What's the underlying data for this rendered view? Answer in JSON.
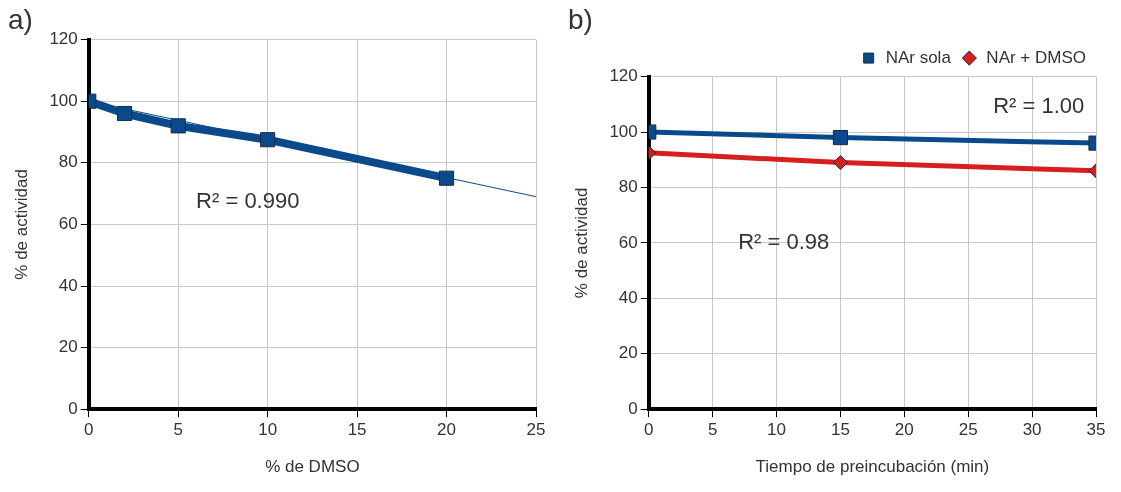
{
  "chart_data": [
    {
      "type": "line",
      "title": "a)",
      "xlabel": "% de DMSO",
      "ylabel": "% de actividad",
      "x": [
        0,
        2,
        5,
        10,
        20
      ],
      "series": [
        {
          "color": "#0b4a8a",
          "values": [
            100,
            96,
            92,
            87.5,
            75
          ]
        },
        {
          "type": "line",
          "x": [
            0,
            25
          ],
          "color": "#0b4a8a",
          "values": [
            100,
            69
          ],
          "marker": "none"
        }
      ],
      "xlim": [
        0,
        25
      ],
      "xticks": [
        0,
        5,
        10,
        15,
        20,
        25
      ],
      "ylim": [
        0,
        120
      ],
      "yticks": [
        0,
        20,
        40,
        60,
        80,
        100,
        120
      ],
      "grid": true,
      "legend": false,
      "marker": "square",
      "line_style": "solid",
      "annotations": [
        "R² = 0.990"
      ]
    },
    {
      "type": "line",
      "title": "b)",
      "xlabel": "Tiempo de preincubación (min)",
      "ylabel": "% de actividad",
      "x": [
        0,
        15,
        35
      ],
      "series": [
        {
          "name": "NAr sola",
          "color": "#0b4a8a",
          "values": [
            100,
            98,
            96
          ]
        },
        {
          "name": "NAr + DMSO",
          "color": "#d42020",
          "values": [
            92.5,
            89,
            86
          ],
          "marker": "diamond"
        }
      ],
      "xlim": [
        0,
        35
      ],
      "xticks": [
        0,
        5,
        10,
        15,
        20,
        25,
        30,
        35
      ],
      "ylim": [
        0,
        120
      ],
      "yticks": [
        0,
        20,
        40,
        60,
        80,
        100,
        120
      ],
      "grid": true,
      "legend": "top right",
      "marker": "square",
      "line_style": "solid",
      "annotations": [
        "R² = 1.00",
        "R² = 0.98"
      ]
    }
  ]
}
